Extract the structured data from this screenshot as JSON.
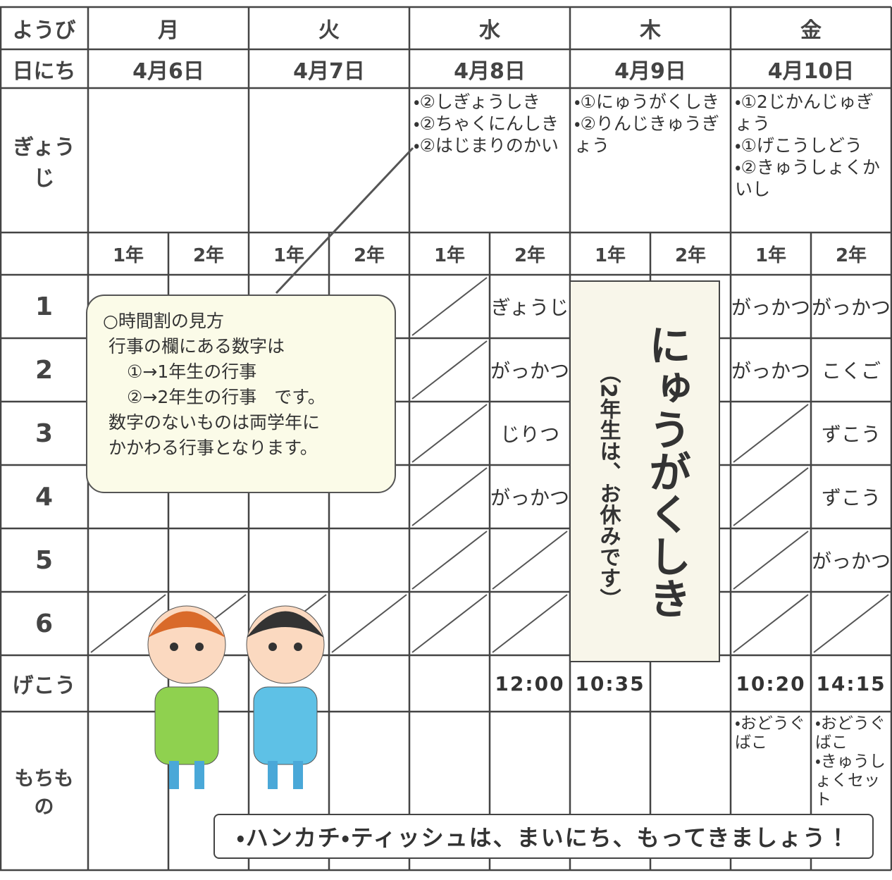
{
  "table": {
    "row_labels": {
      "weekday": "ようび",
      "date": "日にち",
      "events": "ぎょうじ",
      "dismissal": "げこう",
      "items": "もちもの"
    },
    "periods": [
      "1",
      "2",
      "3",
      "4",
      "5",
      "6"
    ],
    "days": [
      {
        "name": "月",
        "date": "4月6日",
        "events": [],
        "classes": [
          {
            "grade": "1年",
            "lessons": [
              null,
              null,
              null,
              null,
              null,
              null
            ],
            "dismissal": null,
            "items": []
          },
          {
            "grade": "2年",
            "lessons": [
              null,
              null,
              null,
              null,
              null,
              null
            ],
            "dismissal": null,
            "items": []
          }
        ]
      },
      {
        "name": "火",
        "date": "4月7日",
        "events": [],
        "classes": [
          {
            "grade": "1年",
            "lessons": [
              null,
              null,
              null,
              null,
              null,
              null
            ],
            "dismissal": null,
            "items": []
          },
          {
            "grade": "2年",
            "lessons": [
              null,
              null,
              null,
              null,
              null,
              null
            ],
            "dismissal": null,
            "items": []
          }
        ]
      },
      {
        "name": "水",
        "date": "4月8日",
        "events": [
          "・②しぎょうしき",
          "・②ちゃくにんしき",
          "・②はじまりのかい"
        ],
        "classes": [
          {
            "grade": "1年",
            "lessons": [
              null,
              null,
              null,
              null,
              null,
              null
            ],
            "dismissal": null,
            "items": []
          },
          {
            "grade": "2年",
            "lessons": [
              "ぎょうじ",
              "がっかつ",
              "じりつ",
              "がっかつ",
              null,
              null
            ],
            "dismissal": "12:00",
            "items": []
          }
        ]
      },
      {
        "name": "木",
        "date": "4月9日",
        "events": [
          "・①にゅうがくしき",
          "・②りんじきゅうぎょう"
        ],
        "classes": [
          {
            "grade": "1年",
            "lessons": [
              null,
              null,
              null,
              null,
              null,
              null
            ],
            "dismissal": "10:35",
            "items": []
          },
          {
            "grade": "2年",
            "lessons": [
              null,
              null,
              null,
              null,
              null,
              null
            ],
            "dismissal": null,
            "items": []
          }
        ]
      },
      {
        "name": "金",
        "date": "4月10日",
        "events": [
          "・①2じかんじゅぎょう",
          "・①げこうしどう",
          "・②きゅうしょくかいし"
        ],
        "classes": [
          {
            "grade": "1年",
            "lessons": [
              "がっかつ",
              "がっかつ",
              null,
              null,
              null,
              null
            ],
            "dismissal": "10:20",
            "items": [
              "・おどうぐばこ"
            ]
          },
          {
            "grade": "2年",
            "lessons": [
              "がっかつ",
              "こくご",
              "ずこう",
              "ずこう",
              "がっかつ",
              null
            ],
            "dismissal": "14:15",
            "items": [
              "・おどうぐばこ",
              "・きゅうしょくセット"
            ]
          }
        ]
      }
    ],
    "ceremony": {
      "title": "にゅうがくしき",
      "note": "（2年生は、お休みです）"
    }
  },
  "note": {
    "title": "○時間割の見方",
    "lines": [
      "行事の欄にある数字は",
      "①→1年生の行事",
      "②→2年生の行事　です。",
      "数字のないものは両学年に",
      "かかわる行事となります。"
    ]
  },
  "banner": "・ハンカチ・ティッシュは、まいにち、もってきましょう！"
}
